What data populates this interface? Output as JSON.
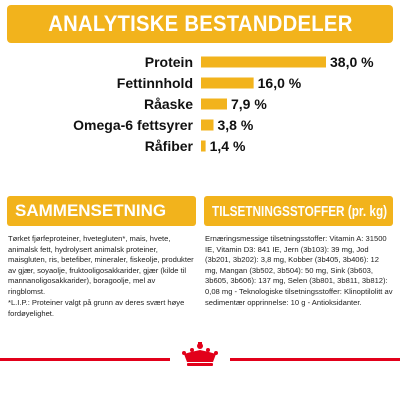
{
  "header": {
    "title": "ANALYTISKE BESTANDDELER"
  },
  "chart_data": {
    "type": "bar",
    "orientation": "horizontal",
    "categories": [
      "Protein",
      "Fettinnhold",
      "Råaske",
      "Omega-6 fettsyrer",
      "Råfiber"
    ],
    "values": [
      38.0,
      16.0,
      7.9,
      3.8,
      1.4
    ],
    "value_labels": [
      "38,0 %",
      "16,0 %",
      "7,9 %",
      "3,8 %",
      "1,4 %"
    ],
    "unit": "%",
    "bar_color": "#f2b31c",
    "xlim": [
      0,
      38.0
    ]
  },
  "composition": {
    "title": "SAMMENSETNING",
    "text": "Tørket fjørfeproteiner, hvetegluten*, mais, hvete, animalsk fett, hydrolysert animalsk proteiner, maisgluten, ris, betefiber, mineraler, fiskeolje, produkter av gjær, soyaolje, fruktooligosakkarider, gjær (kilde til mannanoligosakkarider), boragoolje, mel av ringblomst.",
    "footnote": "*L.I.P.: Proteiner valgt på grunn av deres svært høye fordøyelighet."
  },
  "additives": {
    "title": "TILSETNINGSSTOFFER (pr. kg)",
    "text": "Ernæringsmessige tilsetningsstoffer: Vitamin A: 31500 IE, Vitamin D3: 841 IE, Jern (3b103): 39 mg, Jod (3b201, 3b202): 3,8 mg, Kobber (3b405, 3b406): 12 mg, Mangan (3b502, 3b504): 50 mg, Sink (3b603, 3b605, 3b606): 137 mg, Selen (3b801, 3b811, 3b812): 0,08 mg - Teknologiske tilsetningsstoffer: Klinoptilolitt av sedimentær opprinnelse: 10 g - Antioksidanter."
  },
  "footer": {
    "logo_icon": "royal-canin-crown-logo",
    "accent_color": "#e2001a"
  }
}
